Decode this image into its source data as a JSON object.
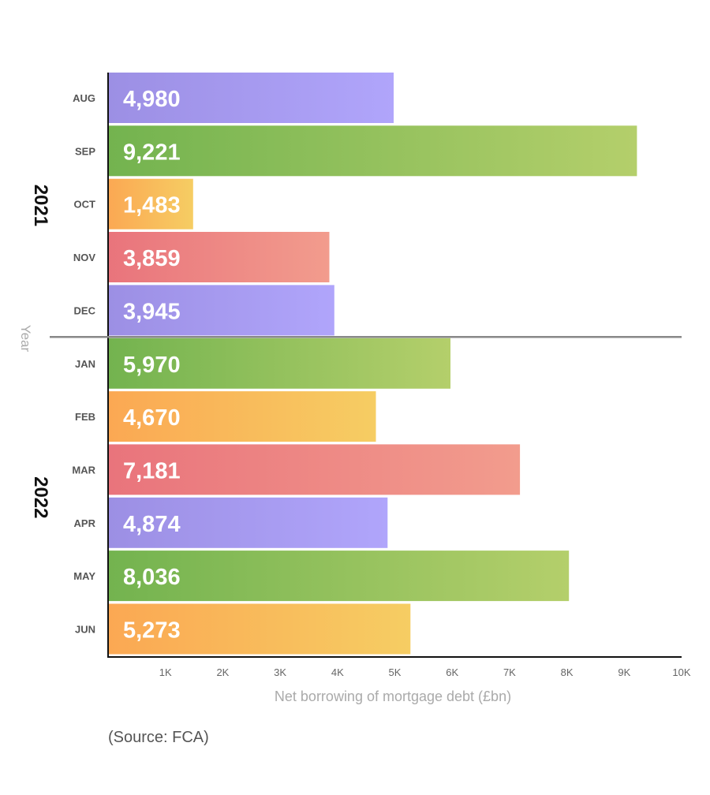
{
  "chart_data": {
    "type": "bar",
    "orientation": "horizontal",
    "xlabel": "Net borrowing of mortgage debt (£bn)",
    "ylabel": "Year",
    "xlim": [
      0,
      10000
    ],
    "x_ticks": [
      {
        "value": 1000,
        "label": "1K"
      },
      {
        "value": 2000,
        "label": "2K"
      },
      {
        "value": 3000,
        "label": "3K"
      },
      {
        "value": 4000,
        "label": "4K"
      },
      {
        "value": 5000,
        "label": "5K"
      },
      {
        "value": 6000,
        "label": "6K"
      },
      {
        "value": 7000,
        "label": "7K"
      },
      {
        "value": 8000,
        "label": "8K"
      },
      {
        "value": 9000,
        "label": "9K"
      },
      {
        "value": 10000,
        "label": "10K"
      }
    ],
    "groups": [
      {
        "label": "2021",
        "categories": [
          "AUG",
          "SEP",
          "OCT",
          "NOV",
          "DEC"
        ]
      },
      {
        "label": "2022",
        "categories": [
          "JAN",
          "FEB",
          "MAR",
          "APR",
          "MAY",
          "JUN"
        ]
      }
    ],
    "bars": [
      {
        "category": "AUG",
        "value": 4980,
        "label": "4,980",
        "color": "purple"
      },
      {
        "category": "SEP",
        "value": 9221,
        "label": "9,221",
        "color": "green"
      },
      {
        "category": "OCT",
        "value": 1483,
        "label": "1,483",
        "color": "orange"
      },
      {
        "category": "NOV",
        "value": 3859,
        "label": "3,859",
        "color": "red"
      },
      {
        "category": "DEC",
        "value": 3945,
        "label": "3,945",
        "color": "purple"
      },
      {
        "category": "JAN",
        "value": 5970,
        "label": "5,970",
        "color": "green"
      },
      {
        "category": "FEB",
        "value": 4670,
        "label": "4,670",
        "color": "orange"
      },
      {
        "category": "MAR",
        "value": 7181,
        "label": "7,181",
        "color": "red"
      },
      {
        "category": "APR",
        "value": 4874,
        "label": "4,874",
        "color": "purple"
      },
      {
        "category": "MAY",
        "value": 8036,
        "label": "8,036",
        "color": "green"
      },
      {
        "category": "JUN",
        "value": 5273,
        "label": "5,273",
        "color": "orange"
      }
    ],
    "palette": {
      "purple": [
        "#9c8fe4",
        "#b0a5fb"
      ],
      "green": [
        "#73b34f",
        "#b4cf6b"
      ],
      "orange": [
        "#fba853",
        "#f6cd63"
      ],
      "red": [
        "#e9747c",
        "#f29c8d"
      ]
    },
    "grid": false
  },
  "source": "(Source: FCA)"
}
